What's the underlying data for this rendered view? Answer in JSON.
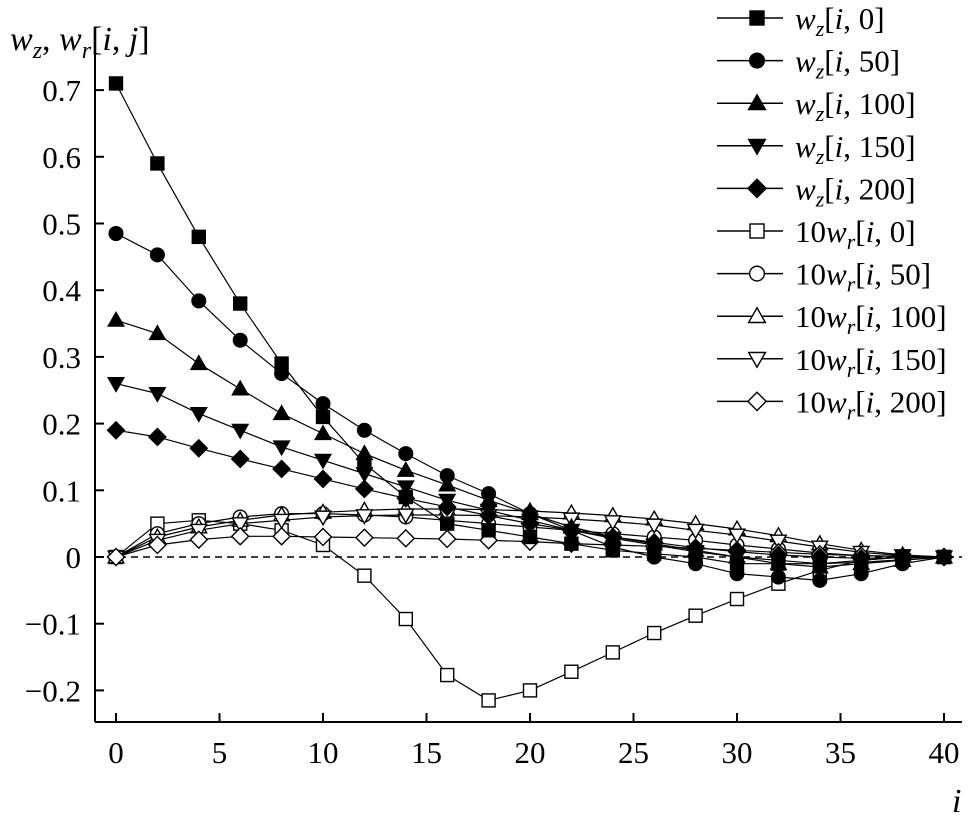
{
  "chart_data": {
    "type": "line",
    "ylabel": "w_z, w_r[i, j]",
    "xlabel": "i",
    "xlim": [
      -1,
      41
    ],
    "ylim": [
      -0.25,
      0.75
    ],
    "x_ticks": [
      0,
      5,
      10,
      15,
      20,
      25,
      30,
      35,
      40
    ],
    "x_tick_labels": [
      "0",
      "5",
      "10",
      "15",
      "20",
      "25",
      "30",
      "35",
      "40"
    ],
    "y_ticks": [
      0.7,
      0.6,
      0.5,
      0.4,
      0.3,
      0.2,
      0.1,
      0,
      -0.1,
      -0.2
    ],
    "y_tick_labels": [
      "0.7",
      "0.6",
      "0.5",
      "0.4",
      "0.3",
      "0.2",
      "0.1",
      "0",
      "−0.1",
      "−0.2"
    ],
    "grid": false,
    "reference_line": {
      "y": 0,
      "style": "dashed"
    },
    "legend_position": "top-right",
    "series": [
      {
        "name": "w_z[i, 0]",
        "label_parts": [
          "",
          "w",
          "z",
          "[",
          "i",
          ", 0]"
        ],
        "marker": "square",
        "filled": true,
        "x": [
          0,
          2,
          4,
          6,
          8,
          10,
          12,
          14,
          16,
          18,
          20,
          22,
          24,
          26,
          28,
          30,
          32,
          34,
          36,
          38,
          40
        ],
        "y": [
          0.71,
          0.59,
          0.48,
          0.38,
          0.29,
          0.21,
          0.14,
          0.09,
          0.05,
          0.04,
          0.03,
          0.02,
          0.01,
          0.005,
          0.0,
          -0.01,
          -0.01,
          -0.01,
          -0.005,
          0.0,
          0.0
        ]
      },
      {
        "name": "w_z[i, 50]",
        "label_parts": [
          "",
          "w",
          "z",
          "[",
          "i",
          ", 50]"
        ],
        "marker": "circle",
        "filled": true,
        "x": [
          0,
          2,
          4,
          6,
          8,
          10,
          12,
          14,
          16,
          18,
          20,
          22,
          24,
          26,
          28,
          30,
          32,
          34,
          36,
          38,
          40
        ],
        "y": [
          0.485,
          0.453,
          0.384,
          0.325,
          0.275,
          0.23,
          0.19,
          0.155,
          0.122,
          0.095,
          0.065,
          0.04,
          0.015,
          0.0,
          -0.01,
          -0.025,
          -0.03,
          -0.035,
          -0.025,
          -0.01,
          0.0
        ]
      },
      {
        "name": "w_z[i, 100]",
        "label_parts": [
          "",
          "w",
          "z",
          "[",
          "i",
          ", 100]"
        ],
        "marker": "triangle-up",
        "filled": true,
        "x": [
          0,
          2,
          4,
          6,
          8,
          10,
          12,
          14,
          16,
          18,
          20,
          22,
          24,
          26,
          28,
          30,
          32,
          34,
          36,
          38,
          40
        ],
        "y": [
          0.355,
          0.335,
          0.29,
          0.252,
          0.215,
          0.185,
          0.155,
          0.13,
          0.108,
          0.085,
          0.065,
          0.045,
          0.03,
          0.02,
          0.01,
          0.0,
          -0.01,
          -0.015,
          -0.01,
          -0.005,
          0.0
        ]
      },
      {
        "name": "w_z[i, 150]",
        "label_parts": [
          "",
          "w",
          "z",
          "[",
          "i",
          ", 150]"
        ],
        "marker": "triangle-down",
        "filled": true,
        "x": [
          0,
          2,
          4,
          6,
          8,
          10,
          12,
          14,
          16,
          18,
          20,
          22,
          24,
          26,
          28,
          30,
          32,
          34,
          36,
          38,
          40
        ],
        "y": [
          0.26,
          0.245,
          0.215,
          0.19,
          0.165,
          0.145,
          0.125,
          0.105,
          0.085,
          0.07,
          0.055,
          0.04,
          0.028,
          0.018,
          0.008,
          0.0,
          -0.005,
          -0.01,
          -0.008,
          -0.004,
          0.0
        ]
      },
      {
        "name": "w_z[i, 200]",
        "label_parts": [
          "",
          "w",
          "z",
          "[",
          "i",
          ", 200]"
        ],
        "marker": "diamond",
        "filled": true,
        "x": [
          0,
          2,
          4,
          6,
          8,
          10,
          12,
          14,
          16,
          18,
          20,
          22,
          24,
          26,
          28,
          30,
          32,
          34,
          36,
          38,
          40
        ],
        "y": [
          0.19,
          0.18,
          0.163,
          0.147,
          0.132,
          0.117,
          0.102,
          0.088,
          0.075,
          0.062,
          0.05,
          0.04,
          0.03,
          0.022,
          0.014,
          0.008,
          0.003,
          0.0,
          -0.002,
          -0.001,
          0.0
        ]
      },
      {
        "name": "10w_r[i, 0]",
        "label_parts": [
          "10",
          "w",
          "r",
          "[",
          "i",
          ", 0]"
        ],
        "marker": "square",
        "filled": false,
        "x": [
          0,
          2,
          4,
          6,
          8,
          10,
          12,
          14,
          16,
          18,
          20,
          22,
          24,
          26,
          28,
          30,
          32,
          34,
          36,
          38,
          40
        ],
        "y": [
          0.0,
          0.05,
          0.055,
          0.05,
          0.04,
          0.018,
          -0.028,
          -0.093,
          -0.177,
          -0.215,
          -0.2,
          -0.172,
          -0.143,
          -0.114,
          -0.088,
          -0.063,
          -0.04,
          -0.02,
          -0.005,
          0.0,
          0.0
        ]
      },
      {
        "name": "10w_r[i, 50]",
        "label_parts": [
          "10",
          "w",
          "r",
          "[",
          "i",
          ", 50]"
        ],
        "marker": "circle",
        "filled": false,
        "x": [
          0,
          2,
          4,
          6,
          8,
          10,
          12,
          14,
          16,
          18,
          20,
          22,
          24,
          26,
          28,
          30,
          32,
          34,
          36,
          38,
          40
        ],
        "y": [
          0.0,
          0.035,
          0.05,
          0.06,
          0.065,
          0.065,
          0.063,
          0.06,
          0.055,
          0.05,
          0.045,
          0.04,
          0.035,
          0.03,
          0.025,
          0.018,
          0.012,
          0.006,
          0.002,
          0.001,
          0.0
        ]
      },
      {
        "name": "10w_r[i, 100]",
        "label_parts": [
          "10",
          "w",
          "r",
          "[",
          "i",
          ", 100]"
        ],
        "marker": "triangle-up",
        "filled": false,
        "x": [
          0,
          2,
          4,
          6,
          8,
          10,
          12,
          14,
          16,
          18,
          20,
          22,
          24,
          26,
          28,
          30,
          32,
          34,
          36,
          38,
          40
        ],
        "y": [
          0.0,
          0.03,
          0.045,
          0.055,
          0.063,
          0.067,
          0.07,
          0.072,
          0.072,
          0.071,
          0.069,
          0.066,
          0.062,
          0.057,
          0.05,
          0.042,
          0.032,
          0.02,
          0.01,
          0.003,
          0.0
        ]
      },
      {
        "name": "10w_r[i, 150]",
        "label_parts": [
          "10",
          "w",
          "r",
          "[",
          "i",
          ", 150]"
        ],
        "marker": "triangle-down",
        "filled": false,
        "x": [
          0,
          2,
          4,
          6,
          8,
          10,
          12,
          14,
          16,
          18,
          20,
          22,
          24,
          26,
          28,
          30,
          32,
          34,
          36,
          38,
          40
        ],
        "y": [
          0.0,
          0.025,
          0.04,
          0.05,
          0.055,
          0.06,
          0.062,
          0.063,
          0.063,
          0.062,
          0.06,
          0.057,
          0.053,
          0.048,
          0.04,
          0.033,
          0.024,
          0.015,
          0.007,
          0.002,
          0.0
        ]
      },
      {
        "name": "10w_r[i, 200]",
        "label_parts": [
          "10",
          "w",
          "r",
          "[",
          "i",
          ", 200]"
        ],
        "marker": "diamond",
        "filled": false,
        "x": [
          0,
          2,
          4,
          6,
          8,
          10,
          12,
          14,
          16,
          18,
          20,
          22,
          24,
          26,
          28,
          30,
          32,
          34,
          36,
          38,
          40
        ],
        "y": [
          0.0,
          0.018,
          0.026,
          0.031,
          0.031,
          0.03,
          0.029,
          0.028,
          0.027,
          0.025,
          0.023,
          0.02,
          0.018,
          0.016,
          0.013,
          0.01,
          0.007,
          0.004,
          0.002,
          0.001,
          0.0
        ]
      }
    ]
  }
}
